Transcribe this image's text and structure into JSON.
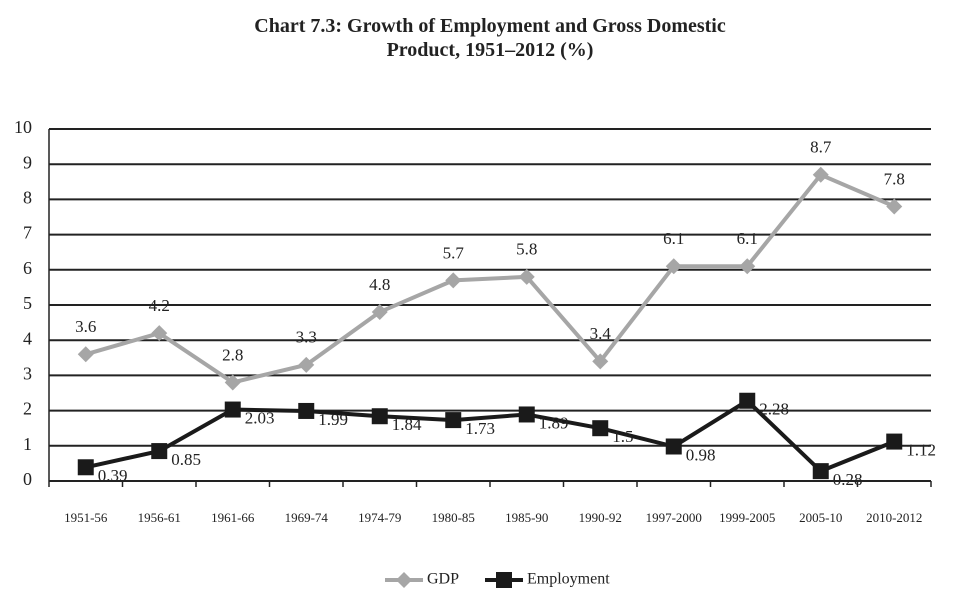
{
  "chart_data": {
    "type": "line",
    "title": "Chart 7.3: Growth of Employment and Gross Domestic Product, 1951–2012 (%)",
    "categories": [
      "1951-56",
      "1956-61",
      "1961-66",
      "1969-74",
      "1974-79",
      "1980-85",
      "1985-90",
      "1990-92",
      "1997-2000",
      "1999-2005",
      "2005-10",
      "2010-2012"
    ],
    "series": [
      {
        "name": "GDP",
        "color": "#a6a6a6",
        "marker": "diamond",
        "values": [
          3.6,
          4.2,
          2.8,
          3.3,
          4.8,
          5.7,
          5.8,
          3.4,
          6.1,
          6.1,
          8.7,
          7.8
        ]
      },
      {
        "name": "Employment",
        "color": "#1a1a1a",
        "marker": "square",
        "values": [
          0.39,
          0.85,
          2.03,
          1.99,
          1.84,
          1.73,
          1.89,
          1.5,
          0.98,
          2.28,
          0.28,
          1.12
        ]
      }
    ],
    "ylim": [
      0,
      10
    ],
    "yticks": [
      0,
      1,
      2,
      3,
      4,
      5,
      6,
      7,
      8,
      9,
      10
    ],
    "grid": true,
    "legend": "bottom"
  }
}
